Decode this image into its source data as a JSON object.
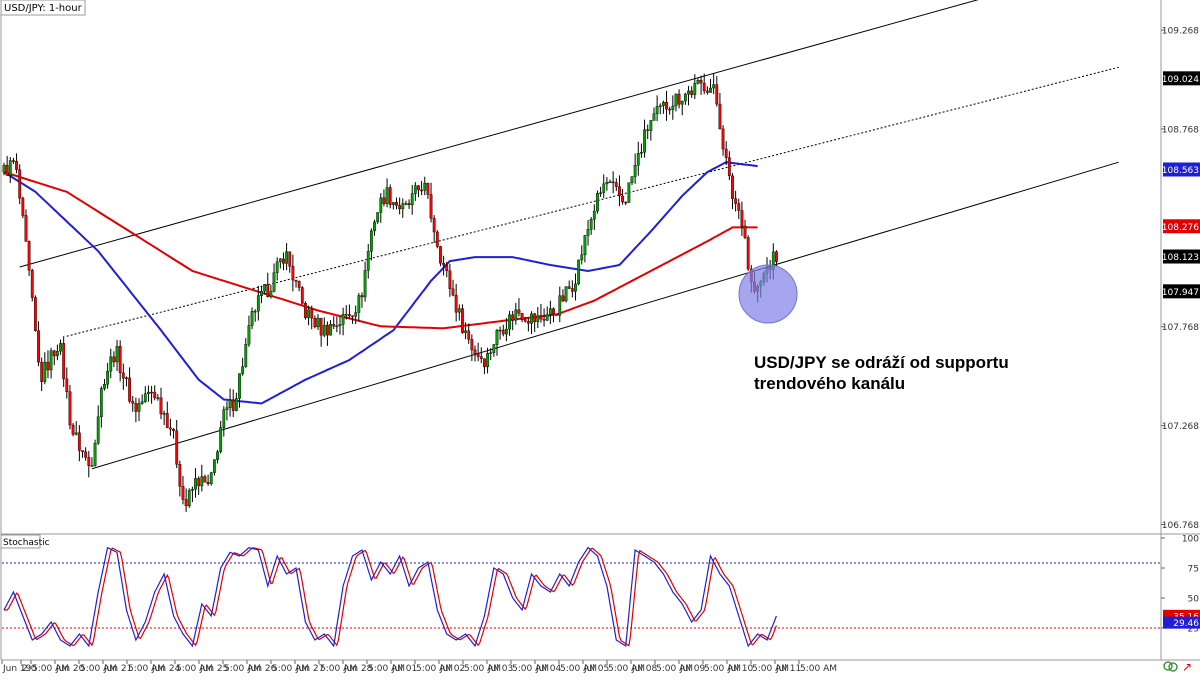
{
  "chart_title": "USD/JPY: 1-hour",
  "indicator_title": "Stochastic",
  "annotation": {
    "line1": "USD/JPY se odráží od supportu",
    "line2": "trendového kanálu"
  },
  "colors": {
    "candle_up": "#00a000",
    "candle_down": "#ff0000",
    "ma_blue": "#1f1fd6",
    "ma_red": "#e00000",
    "highlight_circle": "#8080e8",
    "price_label_bg": "#000000",
    "axis_text": "#333333"
  },
  "price_labels": [
    {
      "value": "109.268",
      "style": "tick"
    },
    {
      "value": "109.024",
      "style": "black"
    },
    {
      "value": "108.768",
      "style": "tick"
    },
    {
      "value": "108.563",
      "style": "blue"
    },
    {
      "value": "108.276",
      "style": "red"
    },
    {
      "value": "108.123",
      "style": "black"
    },
    {
      "value": "107.947",
      "style": "black"
    },
    {
      "value": "107.768",
      "style": "tick"
    },
    {
      "value": "107.268",
      "style": "tick"
    },
    {
      "value": "106.768",
      "style": "tick"
    }
  ],
  "stoch_labels": [
    {
      "value": "100",
      "style": "tick"
    },
    {
      "value": "75",
      "style": "tick"
    },
    {
      "value": "50",
      "style": "tick"
    },
    {
      "value": "25",
      "style": "tick"
    },
    {
      "value": "35.16",
      "style": "red"
    },
    {
      "value": "29.46",
      "style": "blue"
    }
  ],
  "time_labels": [
    "Jun 19",
    "2:0",
    "5:00 AM",
    "Jun 20",
    "5:00 AM",
    "Jun 21",
    "5:00 AM",
    "Jun 24",
    "5:00 AM",
    "Jun 25",
    "5:00 AM",
    "Jun 26",
    "5:00 AM",
    "Jun 27",
    "5:00 AM",
    "Jun 28",
    "5:00 AM",
    "Jul 01",
    "5:00 AM",
    "Jul 02",
    "5:00 AM",
    "Jul 03",
    "5:00 AM",
    "Jul 04",
    "5:00 AM",
    "Jul 05",
    "5:00 AM",
    "Jul 08",
    "5:00 AM",
    "Jul 09",
    "5:00 AM",
    "Jul 10",
    "5:00 AM",
    "Jul 11",
    "5:00 AM"
  ],
  "chart_data": [
    {
      "type": "candlestick",
      "title": "USD/JPY: 1-hour",
      "ylim": [
        106.72,
        109.42
      ],
      "y_ticks": [
        106.768,
        107.268,
        107.768,
        108.268,
        108.768,
        109.268
      ],
      "grid": false,
      "x_index_range": [
        0,
        240
      ],
      "anchors": [
        [
          0,
          108.55
        ],
        [
          4,
          108.6
        ],
        [
          8,
          108.1
        ],
        [
          12,
          107.5
        ],
        [
          18,
          107.7
        ],
        [
          22,
          107.25
        ],
        [
          28,
          107.05
        ],
        [
          32,
          107.5
        ],
        [
          36,
          107.65
        ],
        [
          42,
          107.35
        ],
        [
          48,
          107.45
        ],
        [
          54,
          107.25
        ],
        [
          58,
          106.85
        ],
        [
          62,
          107.0
        ],
        [
          66,
          106.95
        ],
        [
          70,
          107.3
        ],
        [
          74,
          107.4
        ],
        [
          80,
          107.85
        ],
        [
          86,
          108.0
        ],
        [
          90,
          108.15
        ],
        [
          96,
          107.85
        ],
        [
          102,
          107.75
        ],
        [
          108,
          107.8
        ],
        [
          114,
          107.9
        ],
        [
          118,
          108.3
        ],
        [
          122,
          108.45
        ],
        [
          128,
          108.35
        ],
        [
          134,
          108.5
        ],
        [
          140,
          108.1
        ],
        [
          146,
          107.8
        ],
        [
          150,
          107.65
        ],
        [
          154,
          107.6
        ],
        [
          158,
          107.75
        ],
        [
          164,
          107.85
        ],
        [
          170,
          107.8
        ],
        [
          176,
          107.85
        ],
        [
          182,
          108.0
        ],
        [
          188,
          108.35
        ],
        [
          192,
          108.5
        ],
        [
          198,
          108.4
        ],
        [
          202,
          108.6
        ],
        [
          206,
          108.8
        ],
        [
          212,
          108.9
        ],
        [
          218,
          108.95
        ],
        [
          224,
          109.0
        ],
        [
          227,
          108.95
        ],
        [
          229,
          108.75
        ],
        [
          232,
          108.45
        ],
        [
          236,
          108.3
        ],
        [
          238,
          108.0
        ],
        [
          240,
          107.93
        ],
        [
          243,
          108.05
        ],
        [
          246,
          108.12
        ]
      ],
      "moving_averages": [
        {
          "color": "blue",
          "points": [
            [
              0,
              108.55
            ],
            [
              10,
              108.45
            ],
            [
              30,
              108.15
            ],
            [
              50,
              107.75
            ],
            [
              62,
              107.5
            ],
            [
              70,
              107.4
            ],
            [
              82,
              107.38
            ],
            [
              96,
              107.5
            ],
            [
              110,
              107.6
            ],
            [
              124,
              107.75
            ],
            [
              136,
              108.0
            ],
            [
              142,
              108.1
            ],
            [
              150,
              108.12
            ],
            [
              162,
              108.12
            ],
            [
              174,
              108.08
            ],
            [
              186,
              108.05
            ],
            [
              196,
              108.08
            ],
            [
              206,
              108.25
            ],
            [
              216,
              108.43
            ],
            [
              224,
              108.55
            ],
            [
              230,
              108.6
            ],
            [
              240,
              108.58
            ]
          ]
        },
        {
          "color": "red",
          "points": [
            [
              0,
              108.55
            ],
            [
              20,
              108.45
            ],
            [
              40,
              108.25
            ],
            [
              60,
              108.05
            ],
            [
              80,
              107.95
            ],
            [
              100,
              107.85
            ],
            [
              120,
              107.77
            ],
            [
              140,
              107.76
            ],
            [
              160,
              107.8
            ],
            [
              176,
              107.83
            ],
            [
              188,
              107.9
            ],
            [
              200,
              108.0
            ],
            [
              212,
              108.1
            ],
            [
              224,
              108.2
            ],
            [
              232,
              108.27
            ],
            [
              240,
              108.27
            ]
          ]
        }
      ],
      "trendlines": [
        {
          "style": "solid",
          "from": [
            5,
            108.07
          ],
          "to": [
            355,
            109.62
          ]
        },
        {
          "style": "dotted",
          "from": [
            20,
            107.72
          ],
          "to": [
            355,
            109.08
          ]
        },
        {
          "style": "solid",
          "from": [
            28,
            107.05
          ],
          "to": [
            355,
            108.6
          ]
        }
      ],
      "last_values": {
        "price": 108.123,
        "blue_ma": 108.563,
        "red_ma": 108.276,
        "channel_top": 109.024,
        "support": 107.947
      }
    },
    {
      "type": "line",
      "title": "Stochastic",
      "ylim": [
        0,
        100
      ],
      "y_ticks": [
        100,
        75,
        50,
        25
      ],
      "levels": [
        80,
        20
      ],
      "anchors": [
        [
          0,
          40
        ],
        [
          3,
          55
        ],
        [
          6,
          35
        ],
        [
          9,
          15
        ],
        [
          12,
          20
        ],
        [
          15,
          30
        ],
        [
          18,
          15
        ],
        [
          21,
          10
        ],
        [
          24,
          20
        ],
        [
          27,
          10
        ],
        [
          30,
          55
        ],
        [
          33,
          92
        ],
        [
          36,
          88
        ],
        [
          39,
          40
        ],
        [
          42,
          15
        ],
        [
          45,
          30
        ],
        [
          48,
          55
        ],
        [
          51,
          70
        ],
        [
          54,
          35
        ],
        [
          57,
          20
        ],
        [
          60,
          10
        ],
        [
          63,
          45
        ],
        [
          66,
          35
        ],
        [
          69,
          75
        ],
        [
          72,
          88
        ],
        [
          75,
          85
        ],
        [
          78,
          92
        ],
        [
          81,
          90
        ],
        [
          84,
          60
        ],
        [
          87,
          85
        ],
        [
          90,
          70
        ],
        [
          93,
          75
        ],
        [
          96,
          30
        ],
        [
          99,
          15
        ],
        [
          102,
          20
        ],
        [
          105,
          10
        ],
        [
          108,
          60
        ],
        [
          111,
          85
        ],
        [
          114,
          90
        ],
        [
          117,
          65
        ],
        [
          120,
          80
        ],
        [
          123,
          70
        ],
        [
          126,
          85
        ],
        [
          129,
          60
        ],
        [
          132,
          75
        ],
        [
          135,
          80
        ],
        [
          138,
          40
        ],
        [
          141,
          20
        ],
        [
          144,
          15
        ],
        [
          147,
          20
        ],
        [
          150,
          10
        ],
        [
          153,
          35
        ],
        [
          156,
          75
        ],
        [
          159,
          70
        ],
        [
          162,
          50
        ],
        [
          165,
          40
        ],
        [
          168,
          70
        ],
        [
          171,
          60
        ],
        [
          174,
          55
        ],
        [
          177,
          70
        ],
        [
          180,
          60
        ],
        [
          183,
          80
        ],
        [
          186,
          92
        ],
        [
          189,
          85
        ],
        [
          192,
          60
        ],
        [
          195,
          15
        ],
        [
          198,
          10
        ],
        [
          201,
          90
        ],
        [
          204,
          85
        ],
        [
          207,
          80
        ],
        [
          210,
          70
        ],
        [
          213,
          55
        ],
        [
          216,
          45
        ],
        [
          219,
          30
        ],
        [
          222,
          40
        ],
        [
          225,
          85
        ],
        [
          228,
          70
        ],
        [
          231,
          60
        ],
        [
          234,
          35
        ],
        [
          237,
          10
        ],
        [
          240,
          20
        ],
        [
          243,
          15
        ],
        [
          246,
          35
        ]
      ],
      "last_values": {
        "k": 35.16,
        "d": 29.46
      }
    }
  ]
}
